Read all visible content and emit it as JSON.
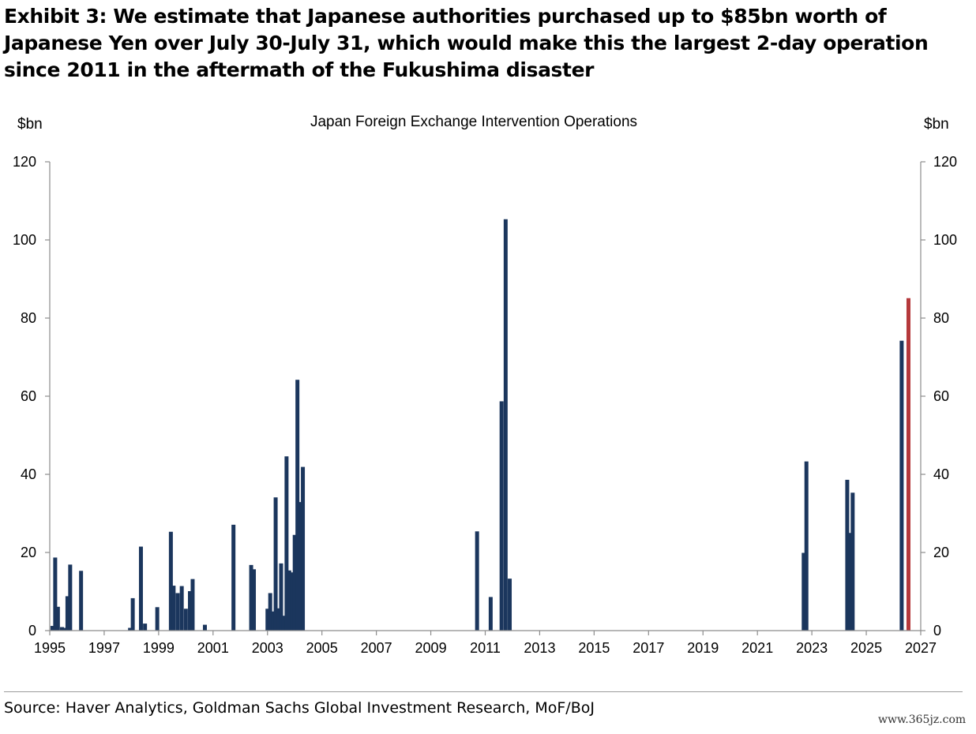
{
  "exhibit_title": "Exhibit 3: We estimate that Japanese authorities purchased up to $85bn worth of Japanese Yen over July 30-July 31, which would make this the largest 2-day operation since 2011 in the aftermath of the Fukushima disaster",
  "source": "Source: Haver Analytics, Goldman Sachs Global Investment Research, MoF/BoJ",
  "watermark": "www.365jz.com",
  "colors": {
    "bar": "#1b365d",
    "highlight": "#b5393b",
    "axis": "#8c8c8c"
  },
  "chart_data": {
    "type": "bar",
    "title": "Japan Foreign Exchange Intervention Operations",
    "ylabel_left": "$bn",
    "ylabel_right": "$bn",
    "ylim": [
      0,
      120
    ],
    "yticks": [
      0,
      20,
      40,
      60,
      80,
      100,
      120
    ],
    "xlim": [
      1995,
      2027
    ],
    "xticks": [
      "1995",
      "1997",
      "1999",
      "2001",
      "2003",
      "2005",
      "2007",
      "2009",
      "2011",
      "2013",
      "2015",
      "2017",
      "2019",
      "2021",
      "2023",
      "2025",
      "2027"
    ],
    "grid": false,
    "series": [
      {
        "points": [
          {
            "x": 1995.1,
            "y": 1.2
          },
          {
            "x": 1995.2,
            "y": 18.7
          },
          {
            "x": 1995.3,
            "y": 6.1
          },
          {
            "x": 1995.45,
            "y": 0.9
          },
          {
            "x": 1995.55,
            "y": 0.7
          },
          {
            "x": 1995.65,
            "y": 8.8
          },
          {
            "x": 1995.75,
            "y": 16.9
          },
          {
            "x": 1996.15,
            "y": 15.3
          },
          {
            "x": 1997.95,
            "y": 0.7
          },
          {
            "x": 1998.05,
            "y": 8.3
          },
          {
            "x": 1998.35,
            "y": 21.5
          },
          {
            "x": 1998.5,
            "y": 1.8
          },
          {
            "x": 1998.95,
            "y": 6.0
          },
          {
            "x": 1999.45,
            "y": 25.3
          },
          {
            "x": 1999.55,
            "y": 11.5
          },
          {
            "x": 1999.7,
            "y": 9.6
          },
          {
            "x": 1999.85,
            "y": 11.4
          },
          {
            "x": 2000.0,
            "y": 5.6
          },
          {
            "x": 2000.15,
            "y": 10.1
          },
          {
            "x": 2000.25,
            "y": 13.2
          },
          {
            "x": 2000.7,
            "y": 1.5
          },
          {
            "x": 2001.75,
            "y": 27.1
          },
          {
            "x": 2002.4,
            "y": 16.8
          },
          {
            "x": 2002.5,
            "y": 15.7
          },
          {
            "x": 2003.0,
            "y": 5.6
          },
          {
            "x": 2003.1,
            "y": 9.6
          },
          {
            "x": 2003.2,
            "y": 4.9
          },
          {
            "x": 2003.3,
            "y": 34.1
          },
          {
            "x": 2003.4,
            "y": 5.7
          },
          {
            "x": 2003.5,
            "y": 17.2
          },
          {
            "x": 2003.6,
            "y": 3.8
          },
          {
            "x": 2003.7,
            "y": 44.6
          },
          {
            "x": 2003.8,
            "y": 15.4
          },
          {
            "x": 2003.9,
            "y": 14.9
          },
          {
            "x": 2004.0,
            "y": 24.5
          },
          {
            "x": 2004.1,
            "y": 64.2
          },
          {
            "x": 2004.2,
            "y": 32.9
          },
          {
            "x": 2004.3,
            "y": 41.9
          },
          {
            "x": 2010.7,
            "y": 25.4
          },
          {
            "x": 2011.2,
            "y": 8.6
          },
          {
            "x": 2011.6,
            "y": 58.7
          },
          {
            "x": 2011.75,
            "y": 105.3
          },
          {
            "x": 2011.9,
            "y": 13.3
          },
          {
            "x": 2022.7,
            "y": 19.9
          },
          {
            "x": 2022.8,
            "y": 43.3
          },
          {
            "x": 2024.3,
            "y": 38.6
          },
          {
            "x": 2024.4,
            "y": 25.0
          },
          {
            "x": 2024.5,
            "y": 35.3
          },
          {
            "x": 2026.3,
            "y": 74.2
          }
        ]
      },
      {
        "highlight": true,
        "points": [
          {
            "x": 2026.55,
            "y": 85.1
          }
        ]
      }
    ]
  }
}
